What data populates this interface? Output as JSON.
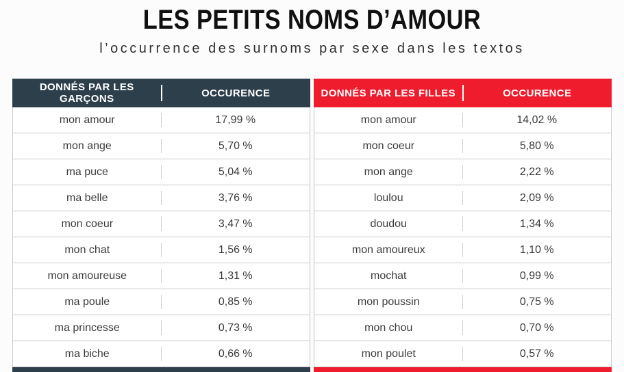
{
  "colors": {
    "boys_header": "#2e3f4c",
    "girls_header": "#ee1c2d",
    "row_border": "#c9c9c9",
    "background": "#fcfcfc",
    "title_color": "#101010"
  },
  "chart_data": {
    "type": "table",
    "title": "LES PETITS NOMS D’AMOUR",
    "subtitle": "l’occurrence des surnoms par sexe dans les textos",
    "tables": [
      {
        "id": "boys",
        "accent_color": "#2e3f4c",
        "header": {
          "name_col": "DONNÉS PAR LES GARÇONS",
          "value_col": "OCCURENCE"
        },
        "rows": [
          {
            "name": "mon amour",
            "value": "17,99 %",
            "pct": 17.99
          },
          {
            "name": "mon ange",
            "value": "5,70 %",
            "pct": 5.7
          },
          {
            "name": "ma puce",
            "value": "5,04 %",
            "pct": 5.04
          },
          {
            "name": "ma belle",
            "value": "3,76 %",
            "pct": 3.76
          },
          {
            "name": "mon coeur",
            "value": "3,47 %",
            "pct": 3.47
          },
          {
            "name": "mon chat",
            "value": "1,56 %",
            "pct": 1.56
          },
          {
            "name": "mon amoureuse",
            "value": "1,31 %",
            "pct": 1.31
          },
          {
            "name": "ma poule",
            "value": "0,85 %",
            "pct": 0.85
          },
          {
            "name": "ma princesse",
            "value": "0,73 %",
            "pct": 0.73
          },
          {
            "name": "ma biche",
            "value": "0,66 %",
            "pct": 0.66
          }
        ]
      },
      {
        "id": "girls",
        "accent_color": "#ee1c2d",
        "header": {
          "name_col": "DONNÉS PAR LES FILLES",
          "value_col": "OCCURENCE"
        },
        "rows": [
          {
            "name": "mon amour",
            "value": "14,02 %",
            "pct": 14.02
          },
          {
            "name": "mon coeur",
            "value": "5,80 %",
            "pct": 5.8
          },
          {
            "name": "mon ange",
            "value": "2,22 %",
            "pct": 2.22
          },
          {
            "name": "loulou",
            "value": "2,09 %",
            "pct": 2.09
          },
          {
            "name": "doudou",
            "value": "1,34 %",
            "pct": 1.34
          },
          {
            "name": "mon amoureux",
            "value": "1,10 %",
            "pct": 1.1
          },
          {
            "name": "mochat",
            "value": "0,99 %",
            "pct": 0.99
          },
          {
            "name": "mon poussin",
            "value": "0,75 %",
            "pct": 0.75
          },
          {
            "name": "mon chou",
            "value": "0,70 %",
            "pct": 0.7
          },
          {
            "name": "mon poulet",
            "value": "0,57 %",
            "pct": 0.57
          }
        ]
      }
    ]
  }
}
